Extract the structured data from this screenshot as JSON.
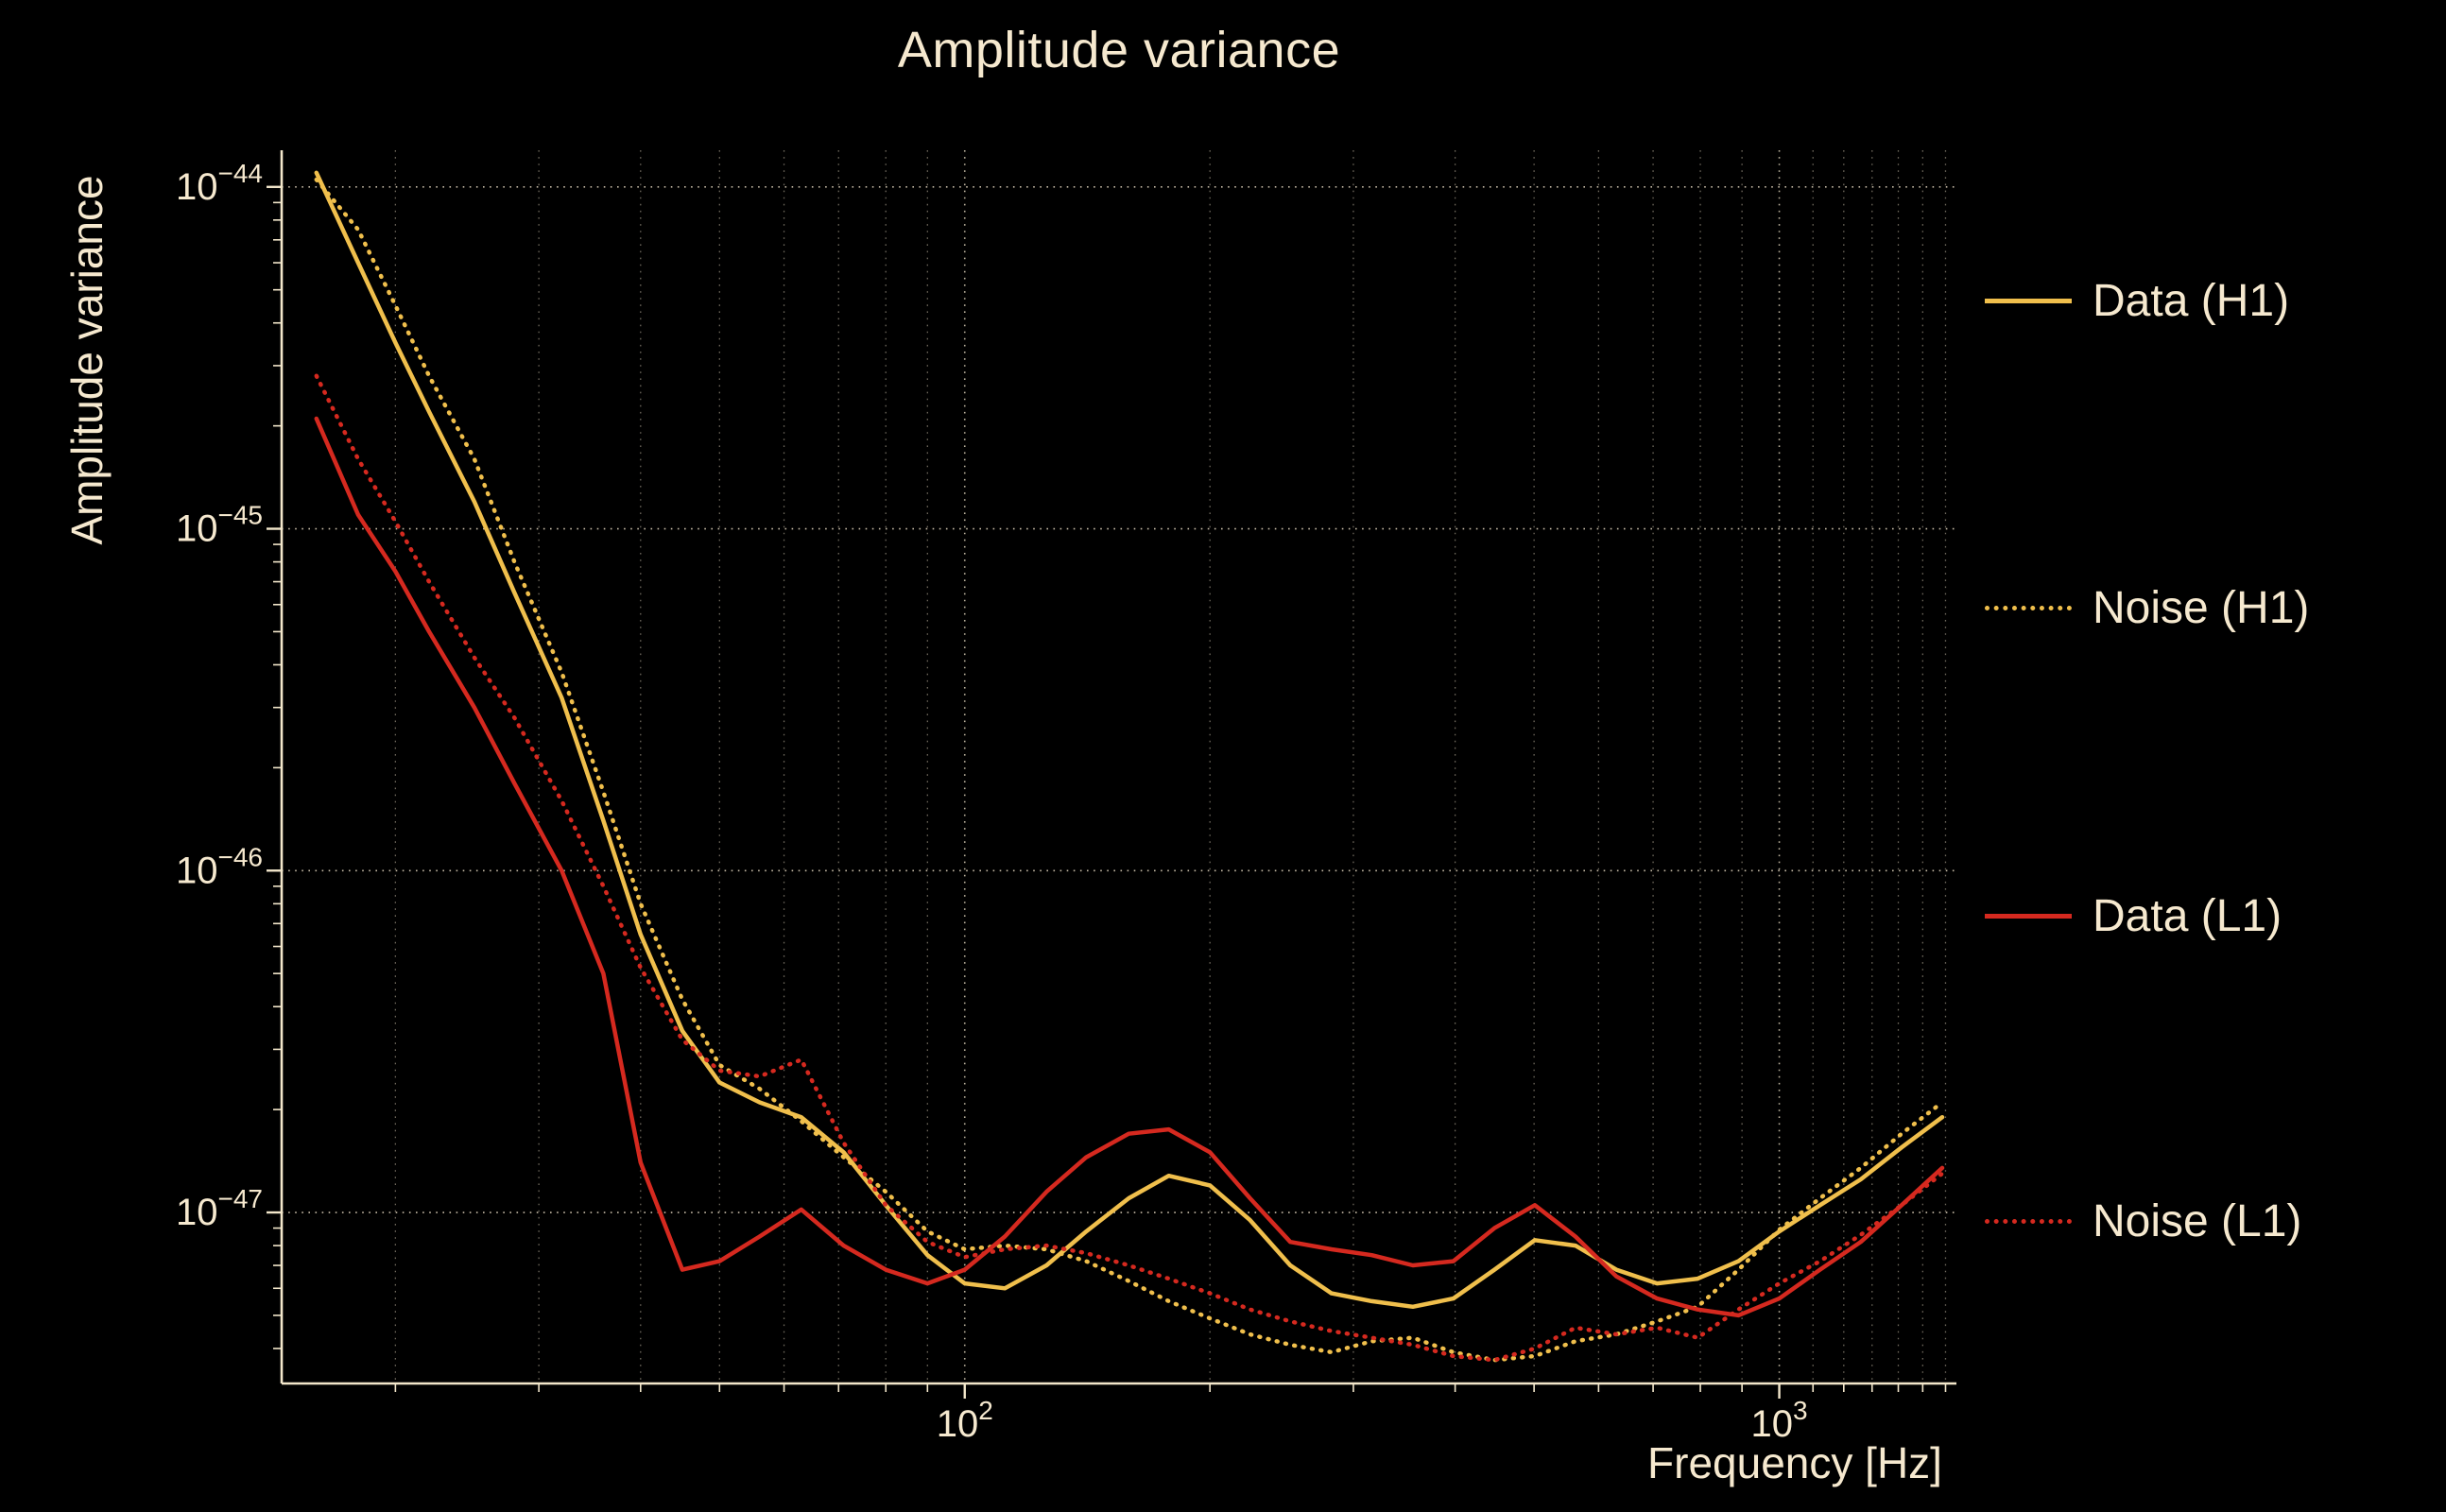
{
  "style": {
    "background": "#000000",
    "text_color": "#f6e9cf",
    "axis_color": "#f3e7cb",
    "grid_color": "#f6e9cf"
  },
  "chart_data": {
    "type": "line",
    "title": "Amplitude variance",
    "xlabel": "Frequency [Hz]",
    "ylabel": "Amplitude variance",
    "x_scale": "log",
    "y_scale": "log",
    "xlim": [
      14.5,
      1650
    ],
    "ylim": [
      3.16e-48,
      1.28e-44
    ],
    "grid": true,
    "legend_position": "right-outside",
    "x_grid_major": [
      100,
      1000
    ],
    "x_grid_minor": [
      20,
      30,
      40,
      50,
      60,
      70,
      80,
      90,
      200,
      300,
      400,
      500,
      600,
      700,
      800,
      900,
      1100,
      1200,
      1300,
      1400,
      1500,
      1600
    ],
    "y_grid_major": [
      1e-44,
      1e-45,
      1e-46,
      1e-47
    ],
    "x_tick_labels": [
      {
        "value": 100,
        "base": "10",
        "exp": "2"
      },
      {
        "value": 1000,
        "base": "10",
        "exp": "3"
      }
    ],
    "y_tick_labels": [
      {
        "value": 1e-44,
        "base": "10",
        "exp": "−44"
      },
      {
        "value": 1e-45,
        "base": "10",
        "exp": "−45"
      },
      {
        "value": 1e-46,
        "base": "10",
        "exp": "−46"
      },
      {
        "value": 1e-47,
        "base": "10",
        "exp": "−47"
      }
    ],
    "x": [
      16,
      18,
      20,
      22,
      25,
      28,
      32,
      36,
      40,
      45,
      50,
      56,
      63,
      71,
      80,
      90,
      100,
      112,
      126,
      141,
      159,
      178,
      200,
      224,
      251,
      282,
      316,
      355,
      398,
      447,
      501,
      562,
      631,
      708,
      794,
      891,
      1000,
      1122,
      1259,
      1413,
      1585
    ],
    "series": [
      {
        "name": "Data (H1)",
        "color": "#f0bf4c",
        "style": "solid",
        "y": [
          1.1e-44,
          6e-45,
          3.5e-45,
          2.2e-45,
          1.2e-45,
          6.5e-46,
          3.2e-46,
          1.4e-46,
          6.5e-47,
          3.4e-47,
          2.4e-47,
          2.1e-47,
          1.9e-47,
          1.5e-47,
          1.05e-47,
          7.5e-48,
          6.2e-48,
          6e-48,
          7e-48,
          8.8e-48,
          1.1e-47,
          1.28e-47,
          1.2e-47,
          9.5e-48,
          7e-48,
          5.8e-48,
          5.5e-48,
          5.3e-48,
          5.6e-48,
          6.8e-48,
          8.3e-48,
          8e-48,
          6.8e-48,
          6.2e-48,
          6.4e-48,
          7.2e-48,
          8.8e-48,
          1.05e-47,
          1.25e-47,
          1.55e-47,
          1.9e-47
        ]
      },
      {
        "name": "Noise (H1)",
        "color": "#f0bf4c",
        "style": "dotted",
        "y": [
          1.05e-44,
          7.5e-45,
          4.5e-45,
          2.8e-45,
          1.6e-45,
          8e-46,
          3.8e-46,
          1.7e-46,
          8e-47,
          4.2e-47,
          2.7e-47,
          2.3e-47,
          1.85e-47,
          1.45e-47,
          1.15e-47,
          8.8e-48,
          7.8e-48,
          8e-48,
          7.8e-48,
          7.2e-48,
          6.3e-48,
          5.5e-48,
          4.9e-48,
          4.4e-48,
          4.1e-48,
          3.9e-48,
          4.2e-48,
          4.3e-48,
          3.9e-48,
          3.7e-48,
          3.8e-48,
          4.2e-48,
          4.4e-48,
          4.8e-48,
          5.3e-48,
          6.8e-48,
          8.9e-48,
          1.1e-47,
          1.35e-47,
          1.7e-47,
          2.1e-47
        ]
      },
      {
        "name": "Data (L1)",
        "color": "#d5291f",
        "style": "solid",
        "y": [
          2.1e-45,
          1.1e-45,
          7.5e-46,
          5e-46,
          3e-46,
          1.8e-46,
          1e-46,
          5e-47,
          1.4e-47,
          6.8e-48,
          7.2e-48,
          8.5e-48,
          1.02e-47,
          8e-48,
          6.8e-48,
          6.2e-48,
          6.8e-48,
          8.5e-48,
          1.15e-47,
          1.45e-47,
          1.7e-47,
          1.75e-47,
          1.5e-47,
          1.1e-47,
          8.2e-48,
          7.8e-48,
          7.5e-48,
          7e-48,
          7.2e-48,
          9e-48,
          1.05e-47,
          8.5e-48,
          6.5e-48,
          5.6e-48,
          5.2e-48,
          5e-48,
          5.6e-48,
          6.8e-48,
          8.2e-48,
          1.05e-47,
          1.35e-47
        ]
      },
      {
        "name": "Noise (L1)",
        "color": "#d5291f",
        "style": "dotted",
        "y": [
          2.8e-45,
          1.6e-45,
          1.05e-45,
          7e-46,
          4.2e-46,
          2.8e-46,
          1.6e-46,
          9e-47,
          5.2e-47,
          3.2e-47,
          2.6e-47,
          2.5e-47,
          2.8e-47,
          1.6e-47,
          1.05e-47,
          8.2e-48,
          7.4e-48,
          7.8e-48,
          8e-48,
          7.6e-48,
          7e-48,
          6.4e-48,
          5.8e-48,
          5.2e-48,
          4.8e-48,
          4.5e-48,
          4.3e-48,
          4.1e-48,
          3.8e-48,
          3.7e-48,
          4e-48,
          4.6e-48,
          4.4e-48,
          4.6e-48,
          4.3e-48,
          5.2e-48,
          6.2e-48,
          7.2e-48,
          8.6e-48,
          1.05e-47,
          1.3e-47
        ]
      }
    ]
  }
}
